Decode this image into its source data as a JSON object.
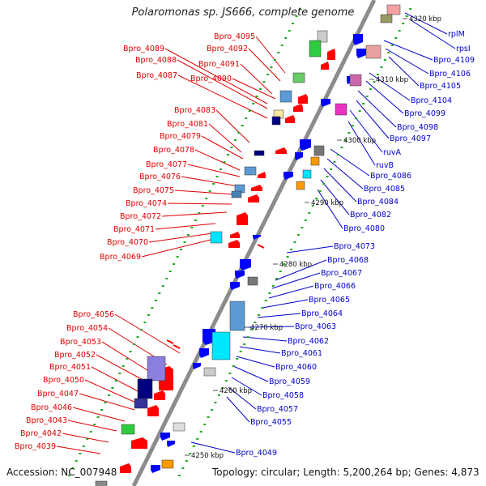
{
  "title": "Polaromonas sp. JS666, complete genome",
  "footer": {
    "accession": "Accession: NC_007948",
    "summary": "Topology: circular; Length: 5,200,264 bp; Genes: 4,873"
  },
  "scale_labels": [
    "4250 kbp",
    "4260 kbp",
    "4270 kbp",
    "4280 kbp",
    "4290 kbp",
    "4300 kbp",
    "4310 kbp",
    "4320 kbp"
  ],
  "left_labels": [
    "Bpro_4095",
    "Bpro_4092",
    "Bpro_4089",
    "Bpro_4088",
    "Bpro_4091",
    "Bpro_4087",
    "Bpro_4090",
    "Bpro_4083",
    "Bpro_4081",
    "Bpro_4079",
    "Bpro_4078",
    "Bpro_4077",
    "Bpro_4076",
    "Bpro_4075",
    "Bpro_4074",
    "Bpro_4072",
    "Bpro_4071",
    "Bpro_4070",
    "Bpro_4069",
    "Bpro_4056",
    "Bpro_4054",
    "Bpro_4053",
    "Bpro_4052",
    "Bpro_4051",
    "Bpro_4050",
    "Bpro_4047",
    "Bpro_4046",
    "Bpro_4043",
    "Bpro_4042",
    "Bpro_4039"
  ],
  "right_labels": [
    "rplM",
    "rpsI",
    "Bpro_4109",
    "Bpro_4106",
    "Bpro_4105",
    "Bpro_4104",
    "Bpro_4099",
    "Bpro_4098",
    "Bpro_4097",
    "ruvA",
    "ruvB",
    "Bpro_4086",
    "Bpro_4085",
    "Bpro_4084",
    "Bpro_4082",
    "Bpro_4080",
    "Bpro_4073",
    "Bpro_4068",
    "Bpro_4067",
    "Bpro_4066",
    "Bpro_4065",
    "Bpro_4064",
    "Bpro_4063",
    "Bpro_4062",
    "Bpro_4061",
    "Bpro_4060",
    "Bpro_4059",
    "Bpro_4058",
    "Bpro_4057",
    "Bpro_4055",
    "Bpro_4049"
  ],
  "colors": {
    "forward_strand": "#ff0000",
    "reverse_strand": "#0000ff",
    "backbone": "#808080",
    "left_label": "#e00000",
    "right_label": "#0000cc",
    "dots": "#22aa22"
  }
}
